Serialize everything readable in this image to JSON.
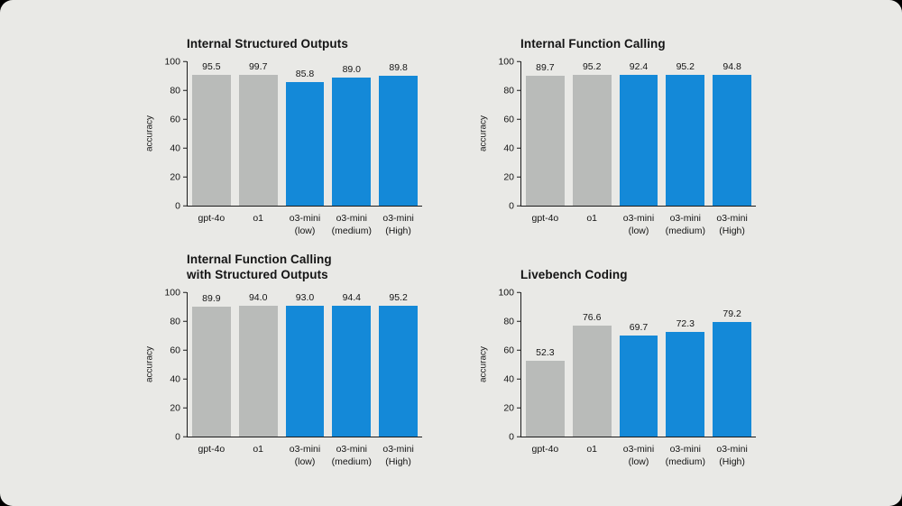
{
  "colors": {
    "background": "#e9e9e6",
    "bar_gray": "#b9bbb9",
    "bar_blue": "#1489d8",
    "axis": "#1c1c1c",
    "text": "#141414"
  },
  "chart_data": [
    {
      "type": "bar",
      "title": "Internal Structured Outputs",
      "ylabel": "accuracy",
      "ylim": [
        0,
        100
      ],
      "yticks": [
        0,
        20,
        40,
        60,
        80,
        100
      ],
      "grid": false,
      "legend": "none",
      "categories": [
        "gpt-4o",
        "o1",
        "o3-mini\n(low)",
        "o3-mini\n(medium)",
        "o3-mini\n(High)"
      ],
      "values": [
        95.5,
        99.7,
        85.8,
        89.0,
        89.8
      ],
      "bar_colors": [
        "gray",
        "gray",
        "blue",
        "blue",
        "blue"
      ]
    },
    {
      "type": "bar",
      "title": "Internal Function Calling",
      "ylabel": "accuracy",
      "ylim": [
        0,
        100
      ],
      "yticks": [
        0,
        20,
        40,
        60,
        80,
        100
      ],
      "grid": false,
      "legend": "none",
      "categories": [
        "gpt-4o",
        "o1",
        "o3-mini\n(low)",
        "o3-mini\n(medium)",
        "o3-mini\n(High)"
      ],
      "values": [
        89.7,
        95.2,
        92.4,
        95.2,
        94.8
      ],
      "bar_colors": [
        "gray",
        "gray",
        "blue",
        "blue",
        "blue"
      ]
    },
    {
      "type": "bar",
      "title": "Internal Function Calling\nwith Structured Outputs",
      "ylabel": "accuracy",
      "ylim": [
        0,
        100
      ],
      "yticks": [
        0,
        20,
        40,
        60,
        80,
        100
      ],
      "grid": false,
      "legend": "none",
      "categories": [
        "gpt-4o",
        "o1",
        "o3-mini\n(low)",
        "o3-mini\n(medium)",
        "o3-mini\n(High)"
      ],
      "values": [
        89.9,
        94.0,
        93.0,
        94.4,
        95.2
      ],
      "bar_colors": [
        "gray",
        "gray",
        "blue",
        "blue",
        "blue"
      ]
    },
    {
      "type": "bar",
      "title": "Livebench Coding",
      "ylabel": "accuracy",
      "ylim": [
        0,
        100
      ],
      "yticks": [
        0,
        20,
        40,
        60,
        80,
        100
      ],
      "grid": false,
      "legend": "none",
      "categories": [
        "gpt-4o",
        "o1",
        "o3-mini\n(low)",
        "o3-mini\n(medium)",
        "o3-mini\n(High)"
      ],
      "values": [
        52.3,
        76.6,
        69.7,
        72.3,
        79.2
      ],
      "bar_colors": [
        "gray",
        "gray",
        "blue",
        "blue",
        "blue"
      ]
    }
  ]
}
